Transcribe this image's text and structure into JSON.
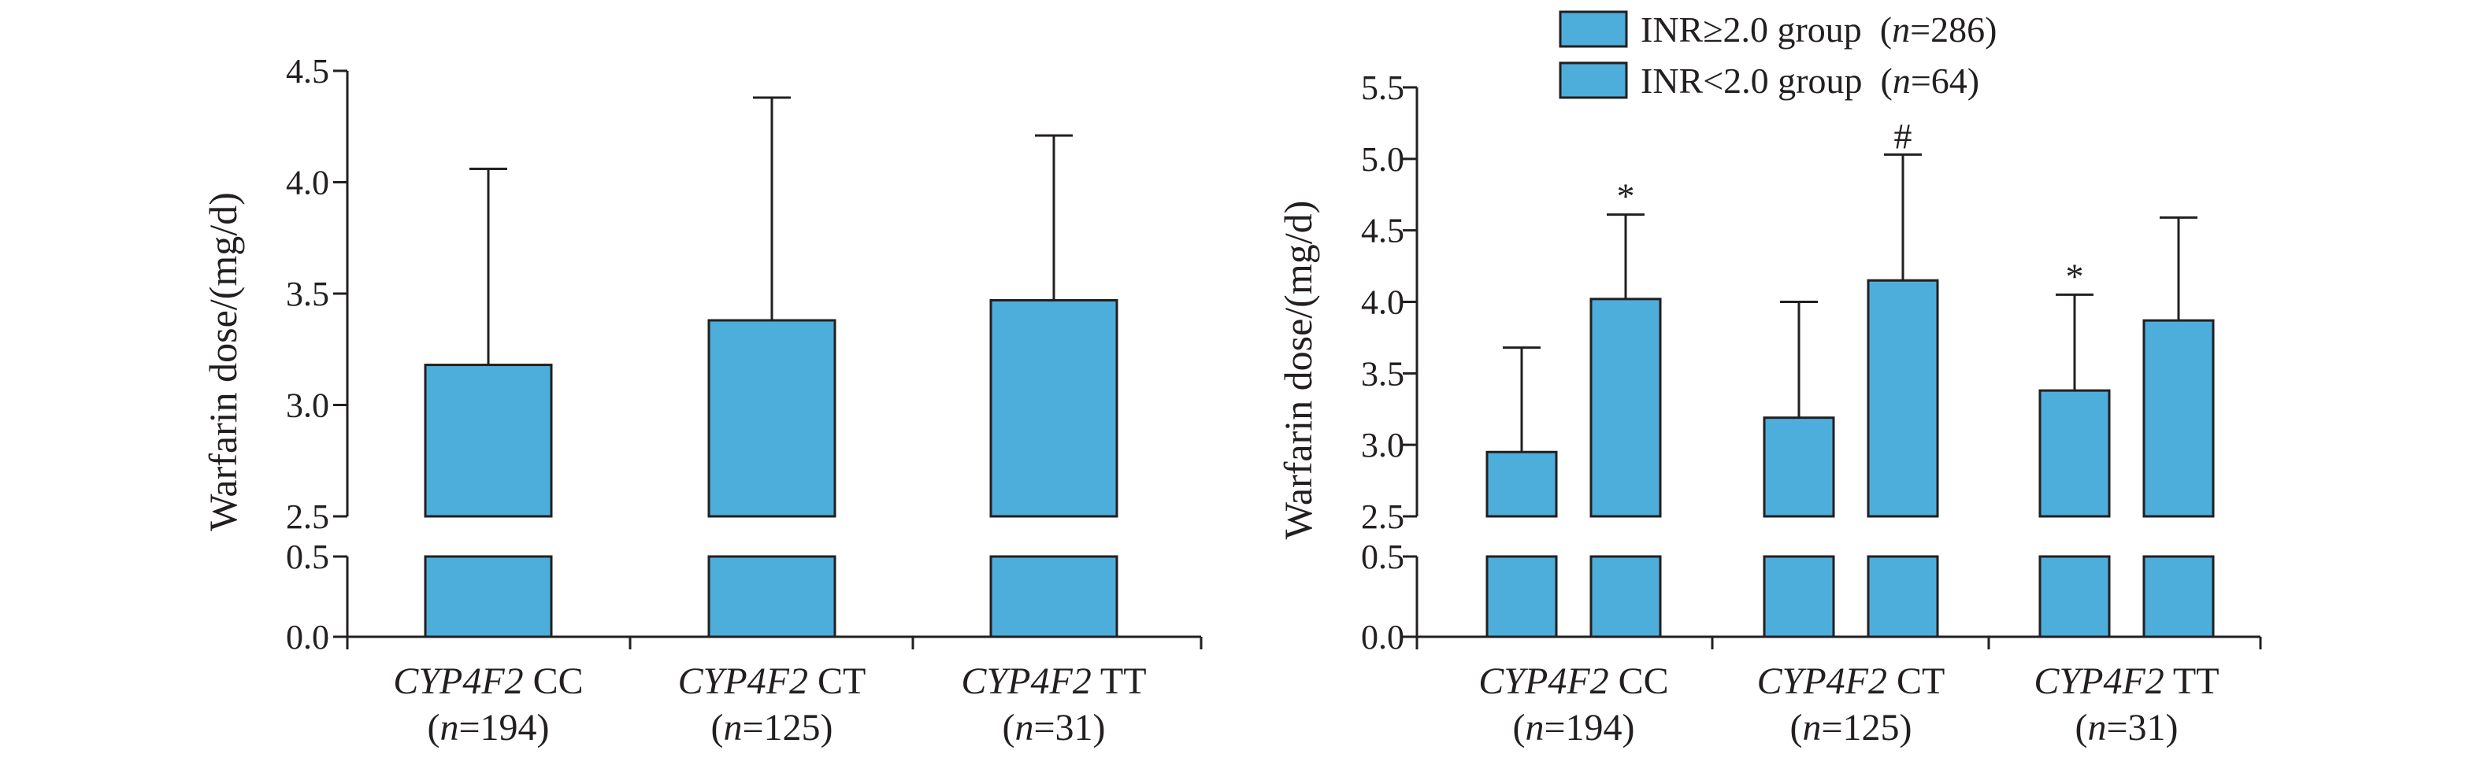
{
  "chart_data": [
    {
      "type": "bar",
      "ylabel": "Warfarin dose/(mg/d)",
      "categories": [
        {
          "gene": "CYP4F2",
          "genotype": "CC",
          "n_label": "n",
          "n_value": "=194"
        },
        {
          "gene": "CYP4F2",
          "genotype": "CT",
          "n_label": "n",
          "n_value": "=125"
        },
        {
          "gene": "CYP4F2",
          "genotype": "TT",
          "n_label": "n",
          "n_value": "=31"
        }
      ],
      "series": [
        {
          "values": [
            3.18,
            3.38,
            3.47
          ],
          "errors": [
            0.88,
            1.0,
            0.74
          ]
        }
      ],
      "axis_break": [
        0.5,
        2.5
      ],
      "ylim": [
        0,
        4.5
      ],
      "yticks_lower": [
        "0.0",
        "0.5"
      ],
      "yticks_upper": [
        "2.5",
        "3.0",
        "3.5",
        "4.0",
        "4.5"
      ],
      "colors": {
        "bar": "#4daedb",
        "line": "#231f20"
      }
    },
    {
      "type": "bar",
      "ylabel": "Warfarin dose/(mg/d)",
      "categories": [
        {
          "gene": "CYP4F2",
          "genotype": "CC",
          "n_label": "n",
          "n_value": "=194"
        },
        {
          "gene": "CYP4F2",
          "genotype": "CT",
          "n_label": "n",
          "n_value": "=125"
        },
        {
          "gene": "CYP4F2",
          "genotype": "TT",
          "n_label": "n",
          "n_value": "=31"
        }
      ],
      "series": [
        {
          "name": "INR≥2.0 group",
          "n_label": "n",
          "n_value": "=286",
          "pattern": "dots",
          "values": [
            2.95,
            3.19,
            3.38
          ],
          "errors": [
            0.73,
            0.81,
            0.67
          ],
          "significance": [
            "",
            "",
            "*"
          ]
        },
        {
          "name": "INR<2.0 group",
          "n_label": "n",
          "n_value": "=64",
          "pattern": "hatch",
          "values": [
            4.02,
            4.15,
            3.87
          ],
          "errors": [
            0.59,
            0.88,
            0.72
          ],
          "significance": [
            "*",
            "#",
            ""
          ]
        }
      ],
      "axis_break": [
        0.5,
        2.5
      ],
      "ylim": [
        0,
        5.5
      ],
      "yticks_lower": [
        "0.0",
        "0.5"
      ],
      "yticks_upper": [
        "2.5",
        "3.0",
        "3.5",
        "4.0",
        "4.5",
        "5.0",
        "5.5"
      ],
      "legend_position": "top",
      "colors": {
        "bar": "#4daedb",
        "line": "#231f20"
      }
    }
  ]
}
